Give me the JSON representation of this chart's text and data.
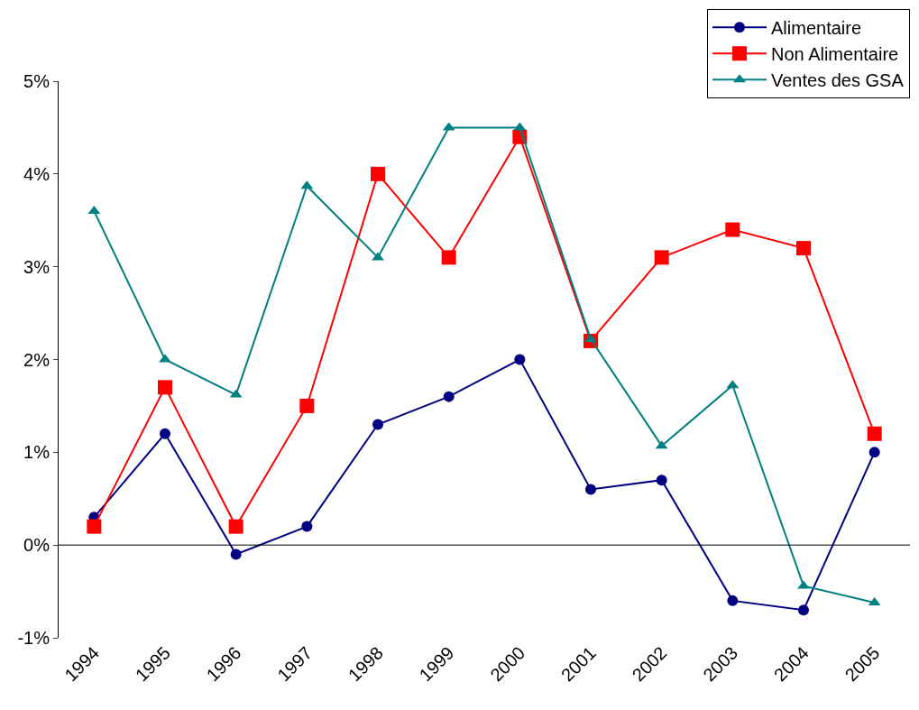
{
  "chart_data": {
    "type": "line",
    "categories": [
      "1994",
      "1995",
      "1996",
      "1997",
      "1998",
      "1999",
      "2000",
      "2001",
      "2002",
      "2003",
      "2004",
      "2005"
    ],
    "series": [
      {
        "name": "Alimentaire",
        "color": "#000080",
        "marker": "circle",
        "values": [
          0.3,
          1.2,
          -0.1,
          0.2,
          1.3,
          1.6,
          2.0,
          0.6,
          0.7,
          -0.6,
          -0.7,
          1.0
        ]
      },
      {
        "name": "Non Alimentaire",
        "color": "#ff0000",
        "marker": "square",
        "values": [
          0.2,
          1.7,
          0.2,
          1.5,
          4.0,
          3.1,
          4.4,
          2.2,
          3.1,
          3.4,
          3.2,
          1.2
        ]
      },
      {
        "name": "Ventes des GSA",
        "color": "#008080",
        "marker": "triangle",
        "values": [
          3.6,
          2.0,
          1.62,
          3.87,
          3.1,
          4.5,
          4.5,
          2.22,
          1.07,
          1.72,
          -0.44,
          -0.62
        ]
      }
    ],
    "ylim": [
      -1,
      5
    ],
    "yticks": [
      {
        "value": -1,
        "label": "-1%"
      },
      {
        "value": 0,
        "label": "0%"
      },
      {
        "value": 1,
        "label": "1%"
      },
      {
        "value": 2,
        "label": "2%"
      },
      {
        "value": 3,
        "label": "3%"
      },
      {
        "value": 4,
        "label": "4%"
      },
      {
        "value": 5,
        "label": "5%"
      }
    ],
    "ref_lines": [
      {
        "axis": "y",
        "value": 0,
        "color": "#000000"
      }
    ],
    "legend": "top right",
    "line_style": "solid"
  }
}
